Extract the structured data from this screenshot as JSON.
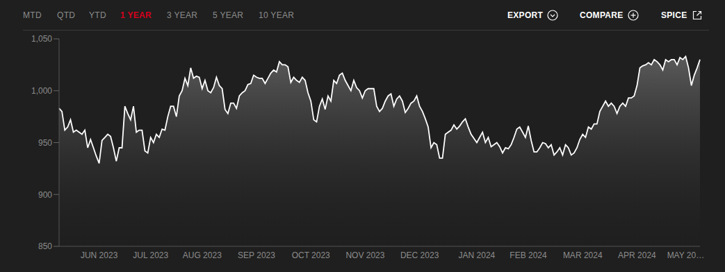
{
  "header": {
    "tabs": [
      "MTD",
      "QTD",
      "YTD",
      "1 YEAR",
      "3 YEAR",
      "5 YEAR",
      "10 YEAR"
    ],
    "active_tab": "1 YEAR",
    "actions": [
      "EXPORT",
      "COMPARE",
      "SPICE"
    ]
  },
  "chart_data": {
    "type": "area",
    "color": "#ffffff",
    "grid": false,
    "ylim": [
      850,
      1050
    ],
    "yticks": [
      850,
      900,
      950,
      {
        "value": 1000,
        "label": "1,000"
      },
      {
        "value": 1050,
        "label": "1,050"
      }
    ],
    "categories": [
      null,
      null,
      null,
      null,
      null,
      null,
      null,
      null,
      null,
      null,
      null,
      null,
      null,
      null,
      "JUN 2023",
      null,
      null,
      null,
      null,
      null,
      null,
      null,
      null,
      null,
      null,
      null,
      null,
      null,
      null,
      null,
      null,
      null,
      "JUL 2023",
      null,
      null,
      null,
      null,
      null,
      null,
      null,
      null,
      null,
      null,
      null,
      null,
      null,
      null,
      null,
      null,
      null,
      "AUG 2023",
      null,
      null,
      null,
      null,
      null,
      null,
      null,
      null,
      null,
      null,
      null,
      null,
      null,
      null,
      null,
      null,
      null,
      null,
      "SEP 2023",
      null,
      null,
      null,
      null,
      null,
      null,
      null,
      null,
      null,
      null,
      null,
      null,
      null,
      null,
      null,
      null,
      null,
      null,
      "OCT 2023",
      null,
      null,
      null,
      null,
      null,
      null,
      null,
      null,
      null,
      null,
      null,
      null,
      null,
      null,
      null,
      null,
      null,
      null,
      "NOV 2023",
      null,
      null,
      null,
      null,
      null,
      null,
      null,
      null,
      null,
      null,
      null,
      null,
      null,
      null,
      null,
      null,
      null,
      null,
      "DEC 2023",
      null,
      null,
      null,
      null,
      null,
      null,
      null,
      null,
      null,
      null,
      null,
      null,
      null,
      null,
      null,
      null,
      null,
      null,
      null,
      "JAN 2024",
      null,
      null,
      null,
      null,
      null,
      null,
      null,
      null,
      null,
      null,
      null,
      null,
      null,
      null,
      null,
      null,
      null,
      "FEB 2024",
      null,
      null,
      null,
      null,
      null,
      null,
      null,
      null,
      null,
      null,
      null,
      null,
      null,
      null,
      null,
      null,
      null,
      null,
      "MAR 2024",
      null,
      null,
      null,
      null,
      null,
      null,
      null,
      null,
      null,
      null,
      null,
      null,
      null,
      null,
      null,
      null,
      null,
      null,
      "APR 2024",
      null,
      null,
      null,
      null,
      null,
      null,
      null,
      null,
      null,
      null,
      null,
      null,
      null,
      null,
      null,
      null,
      "MAY 20…",
      null,
      null,
      null,
      null,
      null
    ],
    "values": [
      983,
      980,
      962,
      965,
      972,
      960,
      962,
      960,
      958,
      962,
      945,
      953,
      945,
      937,
      930,
      952,
      955,
      958,
      956,
      945,
      932,
      945,
      945,
      985,
      978,
      972,
      985,
      960,
      962,
      962,
      942,
      940,
      955,
      950,
      958,
      955,
      963,
      962,
      975,
      985,
      985,
      975,
      995,
      1000,
      1012,
      1005,
      1022,
      1012,
      1014,
      1013,
      1002,
      1010,
      1000,
      998,
      1003,
      1013,
      1005,
      1002,
      982,
      978,
      988,
      988,
      983,
      995,
      998,
      1000,
      1006,
      1007,
      1015,
      1013,
      1012,
      1012,
      1007,
      1012,
      1017,
      1020,
      1018,
      1028,
      1025,
      1025,
      1023,
      1008,
      1013,
      1010,
      1008,
      1013,
      1010,
      998,
      990,
      972,
      970,
      985,
      992,
      982,
      995,
      990,
      1010,
      1007,
      1015,
      1017,
      1010,
      1005,
      1000,
      1010,
      1003,
      1000,
      993,
      1000,
      1002,
      1002,
      1002,
      985,
      980,
      983,
      990,
      995,
      997,
      985,
      992,
      995,
      990,
      979,
      983,
      988,
      990,
      995,
      985,
      980,
      973,
      965,
      945,
      950,
      948,
      935,
      935,
      958,
      960,
      962,
      967,
      963,
      966,
      970,
      973,
      965,
      958,
      954,
      950,
      955,
      960,
      950,
      955,
      946,
      948,
      950,
      946,
      940,
      945,
      944,
      948,
      955,
      963,
      965,
      960,
      955,
      966,
      952,
      941,
      941,
      945,
      950,
      949,
      945,
      948,
      938,
      941,
      945,
      938,
      948,
      945,
      938,
      940,
      945,
      953,
      958,
      955,
      965,
      963,
      968,
      968,
      980,
      985,
      990,
      985,
      988,
      985,
      978,
      985,
      988,
      985,
      993,
      993,
      995,
      1005,
      1022,
      1024,
      1025,
      1027,
      1025,
      1030,
      1028,
      1025,
      1020,
      1030,
      1028,
      1030,
      1030,
      1025,
      1032,
      1030,
      1033,
      1022,
      1005,
      1015,
      1022,
      1030
    ]
  }
}
